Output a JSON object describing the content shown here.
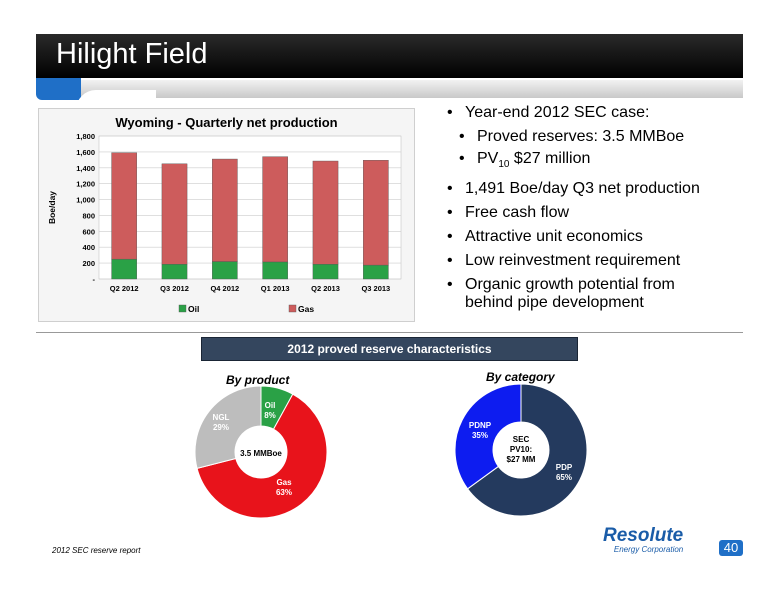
{
  "slide": {
    "title": "Hilight Field",
    "page_number": "40",
    "footnote": "2012 SEC reserve report"
  },
  "bullets": {
    "main1": "Year-end 2012 SEC case:",
    "sub1": "Proved reserves:  3.5 MMBoe",
    "sub2_pv": "PV",
    "sub2_sub": "10",
    "sub2_rest": " $27 million",
    "items": [
      "1,491 Boe/day Q3 net production",
      "Free cash flow",
      "Attractive unit economics",
      "Low reinvestment requirement",
      "Organic growth potential from",
      "behind pipe development"
    ]
  },
  "banner": "2012 proved reserve characteristics",
  "pie_product": {
    "heading": "By product",
    "center": "3.5 MMBoe",
    "labels": [
      {
        "name": "Oil",
        "pct": "8%",
        "value": 8,
        "color": "#2aa146"
      },
      {
        "name": "Gas",
        "pct": "63%",
        "value": 63,
        "color": "#e8131b"
      },
      {
        "name": "NGL",
        "pct": "29%",
        "value": 29,
        "color": "#bdbdbd"
      }
    ]
  },
  "pie_category": {
    "heading": "By category",
    "center_lines": [
      "SEC",
      "PV10:",
      "$27 MM"
    ],
    "labels": [
      {
        "name": "PDP",
        "pct": "65%",
        "value": 65,
        "color": "#243a5e"
      },
      {
        "name": "PDNP",
        "pct": "35%",
        "value": 35,
        "color": "#0d1cf0"
      }
    ]
  },
  "logo": {
    "main": "Resolute",
    "sub": "Energy Corporation"
  },
  "chart_data": {
    "type": "bar",
    "title": "Wyoming - Quarterly net production",
    "ylabel": "Boe/day",
    "xlabel": "",
    "categories": [
      "Q2 2012",
      "Q3 2012",
      "Q4 2012",
      "Q1 2013",
      "Q2 2013",
      "Q3 2013"
    ],
    "ylim": [
      0,
      1800
    ],
    "yticks": [
      "-",
      "200",
      "400",
      "600",
      "800",
      "1,000",
      "1,200",
      "1,400",
      "1,600",
      "1,800"
    ],
    "stacked": true,
    "series": [
      {
        "name": "Oil",
        "color": "#2aa146",
        "values": [
          250,
          185,
          220,
          215,
          185,
          175
        ]
      },
      {
        "name": "Gas",
        "color": "#cd5c5c",
        "values": [
          1340,
          1265,
          1290,
          1325,
          1300,
          1320
        ]
      }
    ],
    "legend": "bottom"
  }
}
